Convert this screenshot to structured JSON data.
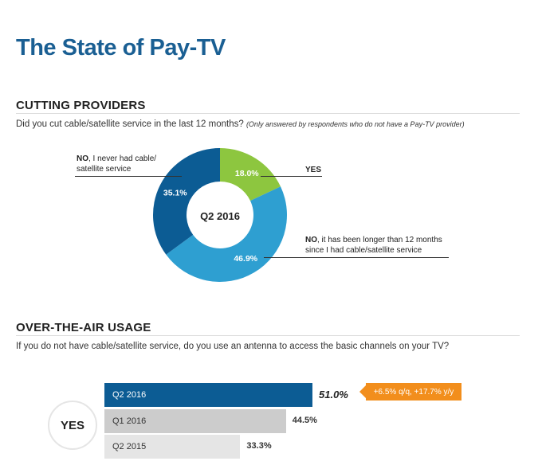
{
  "header": {
    "title": "The State of Pay-TV"
  },
  "cutting": {
    "section_title": "CUTTING PROVIDERS",
    "question": "Did you cut cable/satellite service in the last 12 months?",
    "question_note": "(Only answered by respondents who do not have a Pay-TV provider)",
    "center_label": "Q2 2016",
    "callouts": {
      "never_bold": "NO",
      "never_rest_line1": ", I never had cable/",
      "never_rest_line2": "satellite service",
      "yes_bold": "YES",
      "longer_bold": "NO",
      "longer_rest_line1": ", it has been longer than 12 months",
      "longer_rest_line2": "since I had cable/satellite service"
    }
  },
  "chart_data": [
    {
      "type": "pie",
      "title": "Q2 2016",
      "slices": [
        {
          "label": "YES",
          "value": 18.0,
          "display": "18.0%",
          "color": "#8dc63f"
        },
        {
          "label": "NO, it has been longer than 12 months since I had cable/satellite service",
          "value": 46.9,
          "display": "46.9%",
          "color": "#2e9fd1"
        },
        {
          "label": "NO, I never had cable/ satellite service",
          "value": 35.1,
          "display": "35.1%",
          "color": "#0c5c94"
        }
      ]
    },
    {
      "type": "bar",
      "title": "OVER-THE-AIR USAGE",
      "series_label": "YES",
      "categories": [
        "Q2 2016",
        "Q1 2016",
        "Q2 2015"
      ],
      "values": [
        51.0,
        44.5,
        33.3
      ],
      "display": [
        "51.0%",
        "44.5%",
        "33.3%"
      ],
      "colors": [
        "#0c5c94",
        "#cccccc",
        "#e5e5e5"
      ],
      "annotation": "+6.5% q/q, +17.7% y/y"
    }
  ],
  "ota": {
    "section_title": "OVER-THE-AIR USAGE",
    "question": "If you do not have cable/satellite service, do you use an antenna to access the basic channels on your TV?",
    "yes_label": "YES",
    "change_note": "+6.5% q/q, +17.7% y/y"
  }
}
